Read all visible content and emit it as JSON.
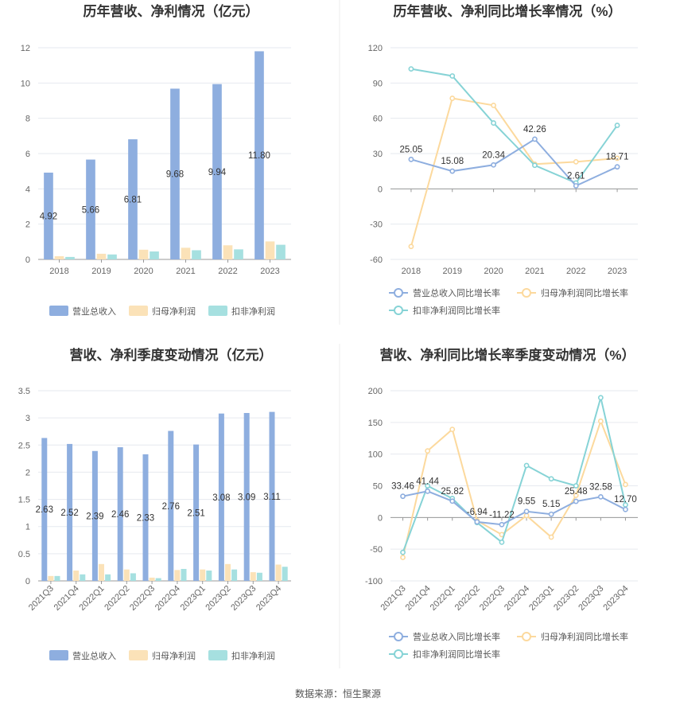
{
  "colors": {
    "revenue": "#8eaedf",
    "parent": "#fbe2b8",
    "deducted": "#a6e0e0",
    "revenue_line": "#8eaedf",
    "parent_line": "#fcd99d",
    "deducted_line": "#86d3d6"
  },
  "legend": {
    "revenue": "营业总收入",
    "parent": "归母净利润",
    "deducted": "扣非净利润",
    "revenue_g": "营业总收入同比增长率",
    "parent_g": "归母净利润同比增长率",
    "deducted_g": "扣非净利润同比增长率"
  },
  "source": "数据来源：恒生聚源",
  "chart_data": [
    {
      "type": "bar",
      "title": "历年营收、净利情况（亿元）",
      "categories": [
        "2018",
        "2019",
        "2020",
        "2021",
        "2022",
        "2023"
      ],
      "ylim": [
        0,
        12
      ],
      "yticks": [
        0,
        2,
        4,
        6,
        8,
        10,
        12
      ],
      "series": [
        {
          "name": "营业总收入",
          "values": [
            4.92,
            5.66,
            6.81,
            9.68,
            9.94,
            11.8
          ],
          "labels": [
            "4.92",
            "5.66",
            "6.81",
            "9.68",
            "9.94",
            "11.80"
          ]
        },
        {
          "name": "归母净利润",
          "values": [
            0.18,
            0.32,
            0.55,
            0.66,
            0.8,
            1.02
          ]
        },
        {
          "name": "扣非净利润",
          "values": [
            0.14,
            0.28,
            0.45,
            0.52,
            0.57,
            0.83
          ]
        }
      ]
    },
    {
      "type": "line",
      "title": "历年营收、净利同比增长率情况（%）",
      "categories": [
        "2018",
        "2019",
        "2020",
        "2021",
        "2022",
        "2023"
      ],
      "ylim": [
        -60,
        120
      ],
      "yticks": [
        -60,
        -30,
        0,
        30,
        60,
        90,
        120
      ],
      "series": [
        {
          "name": "营业总收入同比增长率",
          "values": [
            25.05,
            15.08,
            20.34,
            42.26,
            2.61,
            18.71
          ],
          "labels": [
            "25.05",
            "15.08",
            "20.34",
            "42.26",
            "2.61",
            "18.71"
          ]
        },
        {
          "name": "归母净利润同比增长率",
          "values": [
            -49,
            77,
            71,
            21,
            23,
            26
          ]
        },
        {
          "name": "扣非净利润同比增长率",
          "values": [
            102,
            96,
            56,
            20,
            5,
            54
          ]
        }
      ]
    },
    {
      "type": "bar",
      "title": "营收、净利季度变动情况（亿元）",
      "categories": [
        "2021Q3",
        "2021Q4",
        "2022Q1",
        "2022Q2",
        "2022Q3",
        "2022Q4",
        "2023Q1",
        "2023Q2",
        "2023Q3",
        "2023Q4"
      ],
      "ylim": [
        0,
        3.5
      ],
      "yticks": [
        0,
        0.5,
        1,
        1.5,
        2,
        2.5,
        3,
        3.5
      ],
      "series": [
        {
          "name": "营业总收入",
          "values": [
            2.63,
            2.52,
            2.39,
            2.46,
            2.33,
            2.76,
            2.51,
            3.08,
            3.09,
            3.11
          ],
          "labels": [
            "2.63",
            "2.52",
            "2.39",
            "2.46",
            "2.33",
            "2.76",
            "2.51",
            "3.08",
            "3.09",
            "3.11"
          ]
        },
        {
          "name": "归母净利润",
          "values": [
            0.09,
            0.19,
            0.31,
            0.21,
            0.06,
            0.2,
            0.21,
            0.31,
            0.16,
            0.3
          ]
        },
        {
          "name": "扣非净利润",
          "values": [
            0.09,
            0.12,
            0.12,
            0.14,
            0.05,
            0.22,
            0.19,
            0.21,
            0.15,
            0.26
          ]
        }
      ]
    },
    {
      "type": "line",
      "title": "营收、净利同比增长率季度变动情况（%）",
      "categories": [
        "2021Q3",
        "2021Q4",
        "2022Q1",
        "2022Q2",
        "2022Q3",
        "2022Q4",
        "2023Q1",
        "2023Q2",
        "2023Q3",
        "2023Q4"
      ],
      "ylim": [
        -100,
        200
      ],
      "yticks": [
        -100,
        -50,
        0,
        50,
        100,
        150,
        200
      ],
      "series": [
        {
          "name": "营业总收入同比增长率",
          "values": [
            33.46,
            41.44,
            25.82,
            -6.94,
            -11.22,
            9.55,
            5.15,
            25.48,
            32.58,
            12.7
          ],
          "labels": [
            "33.46",
            "41.44",
            "25.82",
            "-6.94",
            "-11.22",
            "9.55",
            "5.15",
            "25.48",
            "32.58",
            "12.70"
          ]
        },
        {
          "name": "归母净利润同比增长率",
          "values": [
            -63,
            105,
            139,
            -5,
            -27,
            3,
            -31,
            35,
            152,
            52
          ]
        },
        {
          "name": "扣非净利润同比增长率",
          "values": [
            -55,
            50,
            30,
            -8,
            -39,
            82,
            61,
            50,
            189,
            20
          ]
        }
      ]
    }
  ]
}
